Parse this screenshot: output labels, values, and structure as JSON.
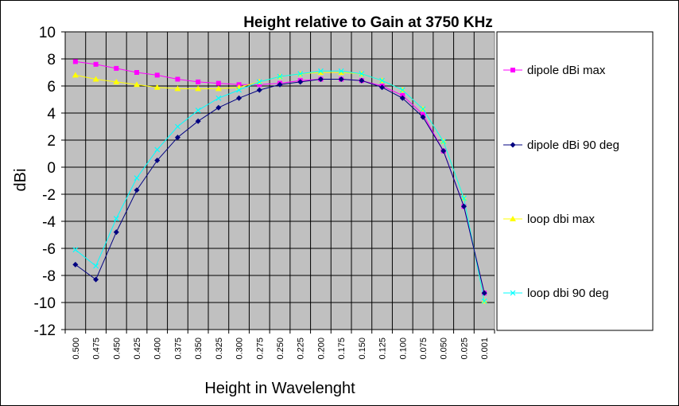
{
  "chart_data": {
    "type": "line",
    "title": "Height relative to Gain at 3750 KHz",
    "xlabel": "Height in Wavelenght",
    "ylabel": "dBi",
    "ylim": [
      -12,
      10
    ],
    "yticks": [
      "10",
      "8",
      "6",
      "4",
      "2",
      "0",
      "-2",
      "-4",
      "-6",
      "-8",
      "-10",
      "-12"
    ],
    "categories": [
      "0.500",
      "0.475",
      "0.450",
      "0.425",
      "0.400",
      "0.375",
      "0.350",
      "0.325",
      "0.300",
      "0.275",
      "0.250",
      "0.225",
      "0.200",
      "0.175",
      "0.150",
      "0.125",
      "0.100",
      "0.075",
      "0.050",
      "0.025",
      "0.001"
    ],
    "grid": true,
    "legend_position": "right",
    "plot_background": "#c0c0c0",
    "series": [
      {
        "name": "dipole dBi max",
        "color": "#ff00ff",
        "marker": "square",
        "values": [
          7.8,
          7.6,
          7.3,
          7.0,
          6.8,
          6.5,
          6.3,
          6.2,
          6.1,
          6.1,
          6.2,
          6.4,
          6.5,
          6.5,
          6.4,
          6.0,
          5.3,
          3.9,
          1.2,
          -2.9,
          -9.3
        ]
      },
      {
        "name": "dipole dBi 90 deg",
        "color": "#000080",
        "marker": "diamond",
        "values": [
          -7.2,
          -8.3,
          -4.8,
          -1.7,
          0.5,
          2.2,
          3.4,
          4.4,
          5.1,
          5.7,
          6.1,
          6.3,
          6.5,
          6.5,
          6.4,
          5.9,
          5.1,
          3.7,
          1.2,
          -2.9,
          -9.3
        ]
      },
      {
        "name": "loop dbi max",
        "color": "#ffff00",
        "marker": "triangle",
        "values": [
          6.8,
          6.5,
          6.3,
          6.1,
          5.9,
          5.8,
          5.8,
          5.8,
          5.9,
          6.3,
          6.7,
          6.9,
          7.0,
          7.0,
          6.9,
          6.4,
          5.7,
          4.3,
          1.9,
          -2.3,
          -9.9
        ]
      },
      {
        "name": "loop dbi 90 deg",
        "color": "#00ffff",
        "marker": "x",
        "values": [
          -6.1,
          -7.3,
          -3.8,
          -0.8,
          1.3,
          3.0,
          4.2,
          5.1,
          5.7,
          6.3,
          6.7,
          6.9,
          7.1,
          7.1,
          6.9,
          6.4,
          5.7,
          4.3,
          1.9,
          -2.3,
          -9.9
        ]
      }
    ]
  }
}
